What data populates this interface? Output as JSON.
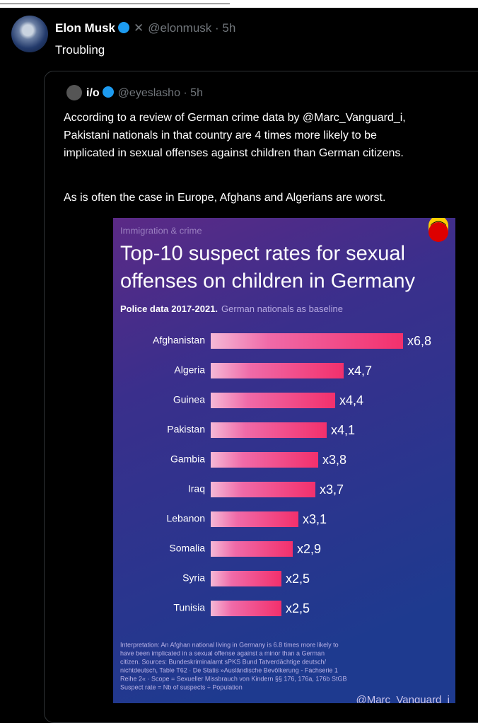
{
  "tweet": {
    "name": "Elon Musk",
    "handle": "@elonmusk · 5h",
    "text": "Troubling"
  },
  "quoted": {
    "name": "i/o",
    "handle": "@eyeslasho · 5h",
    "lines": [
      "According to a review of German crime data by @Marc_Vanguard_i,",
      "Pakistani nationals in that country are 4 times more likely to be",
      "implicated in sexual offenses against children than German citizens.",
      "As is often the case in Europe, Afghans and Algerians are worst."
    ]
  },
  "chart_data": {
    "type": "bar",
    "kicker": "Immigration & crime",
    "title": [
      "Top-10 suspect rates for sexual",
      "offenses on children in Germany"
    ],
    "subtitle_bold": "Police data 2017-2021.",
    "subtitle": "German nationals as baseline",
    "categories": [
      "Afghanistan",
      "Algeria",
      "Guinea",
      "Pakistan",
      "Gambia",
      "Iraq",
      "Lebanon",
      "Somalia",
      "Syria",
      "Tunisia"
    ],
    "values": [
      6.8,
      4.7,
      4.4,
      4.1,
      3.8,
      3.7,
      3.1,
      2.9,
      2.5,
      2.5
    ],
    "value_labels": [
      "x6,8",
      "x4,7",
      "x4,4",
      "x4,1",
      "x3,8",
      "x3,7",
      "x3,1",
      "x2,9",
      "x2,5",
      "x2,5"
    ],
    "color": "#f2306c",
    "footnote": [
      "Interpretation: An Afghan national living in Germany is 6.8 times more likely to",
      "have been implicated in a sexual offense against a minor than a German",
      "citizen. Sources: Bundeskriminalamt sPKS Bund Tatverdächtige deutsch/",
      "nichtdeutsch, Table T62 · De Statis »Ausländische Bevölkerung - Fachserie 1",
      "Reihe 2« · Scope = Sexueller Missbrauch von Kindern §§ 176, 176a, 176b StGB",
      "Suspect rate = Nb of suspects ÷ Population"
    ],
    "watermark": "@Marc_Vanguard_i"
  }
}
